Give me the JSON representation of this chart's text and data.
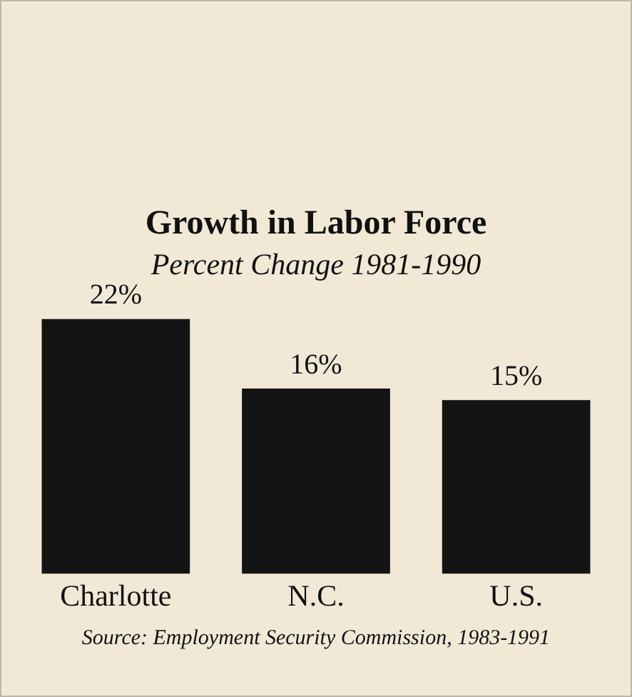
{
  "chart_data": {
    "type": "bar",
    "title": "Growth in Labor Force",
    "subtitle": "Percent Change 1981-1990",
    "categories": [
      "Charlotte",
      "N.C.",
      "U.S."
    ],
    "values": [
      22,
      16,
      15
    ],
    "value_labels": [
      "22%",
      "16%",
      "15%"
    ],
    "color": "#141414",
    "grid": false,
    "legend": false,
    "tick_labels": "x",
    "annotations": [
      "Source: Employment Security Commission, 1983-1991"
    ]
  }
}
